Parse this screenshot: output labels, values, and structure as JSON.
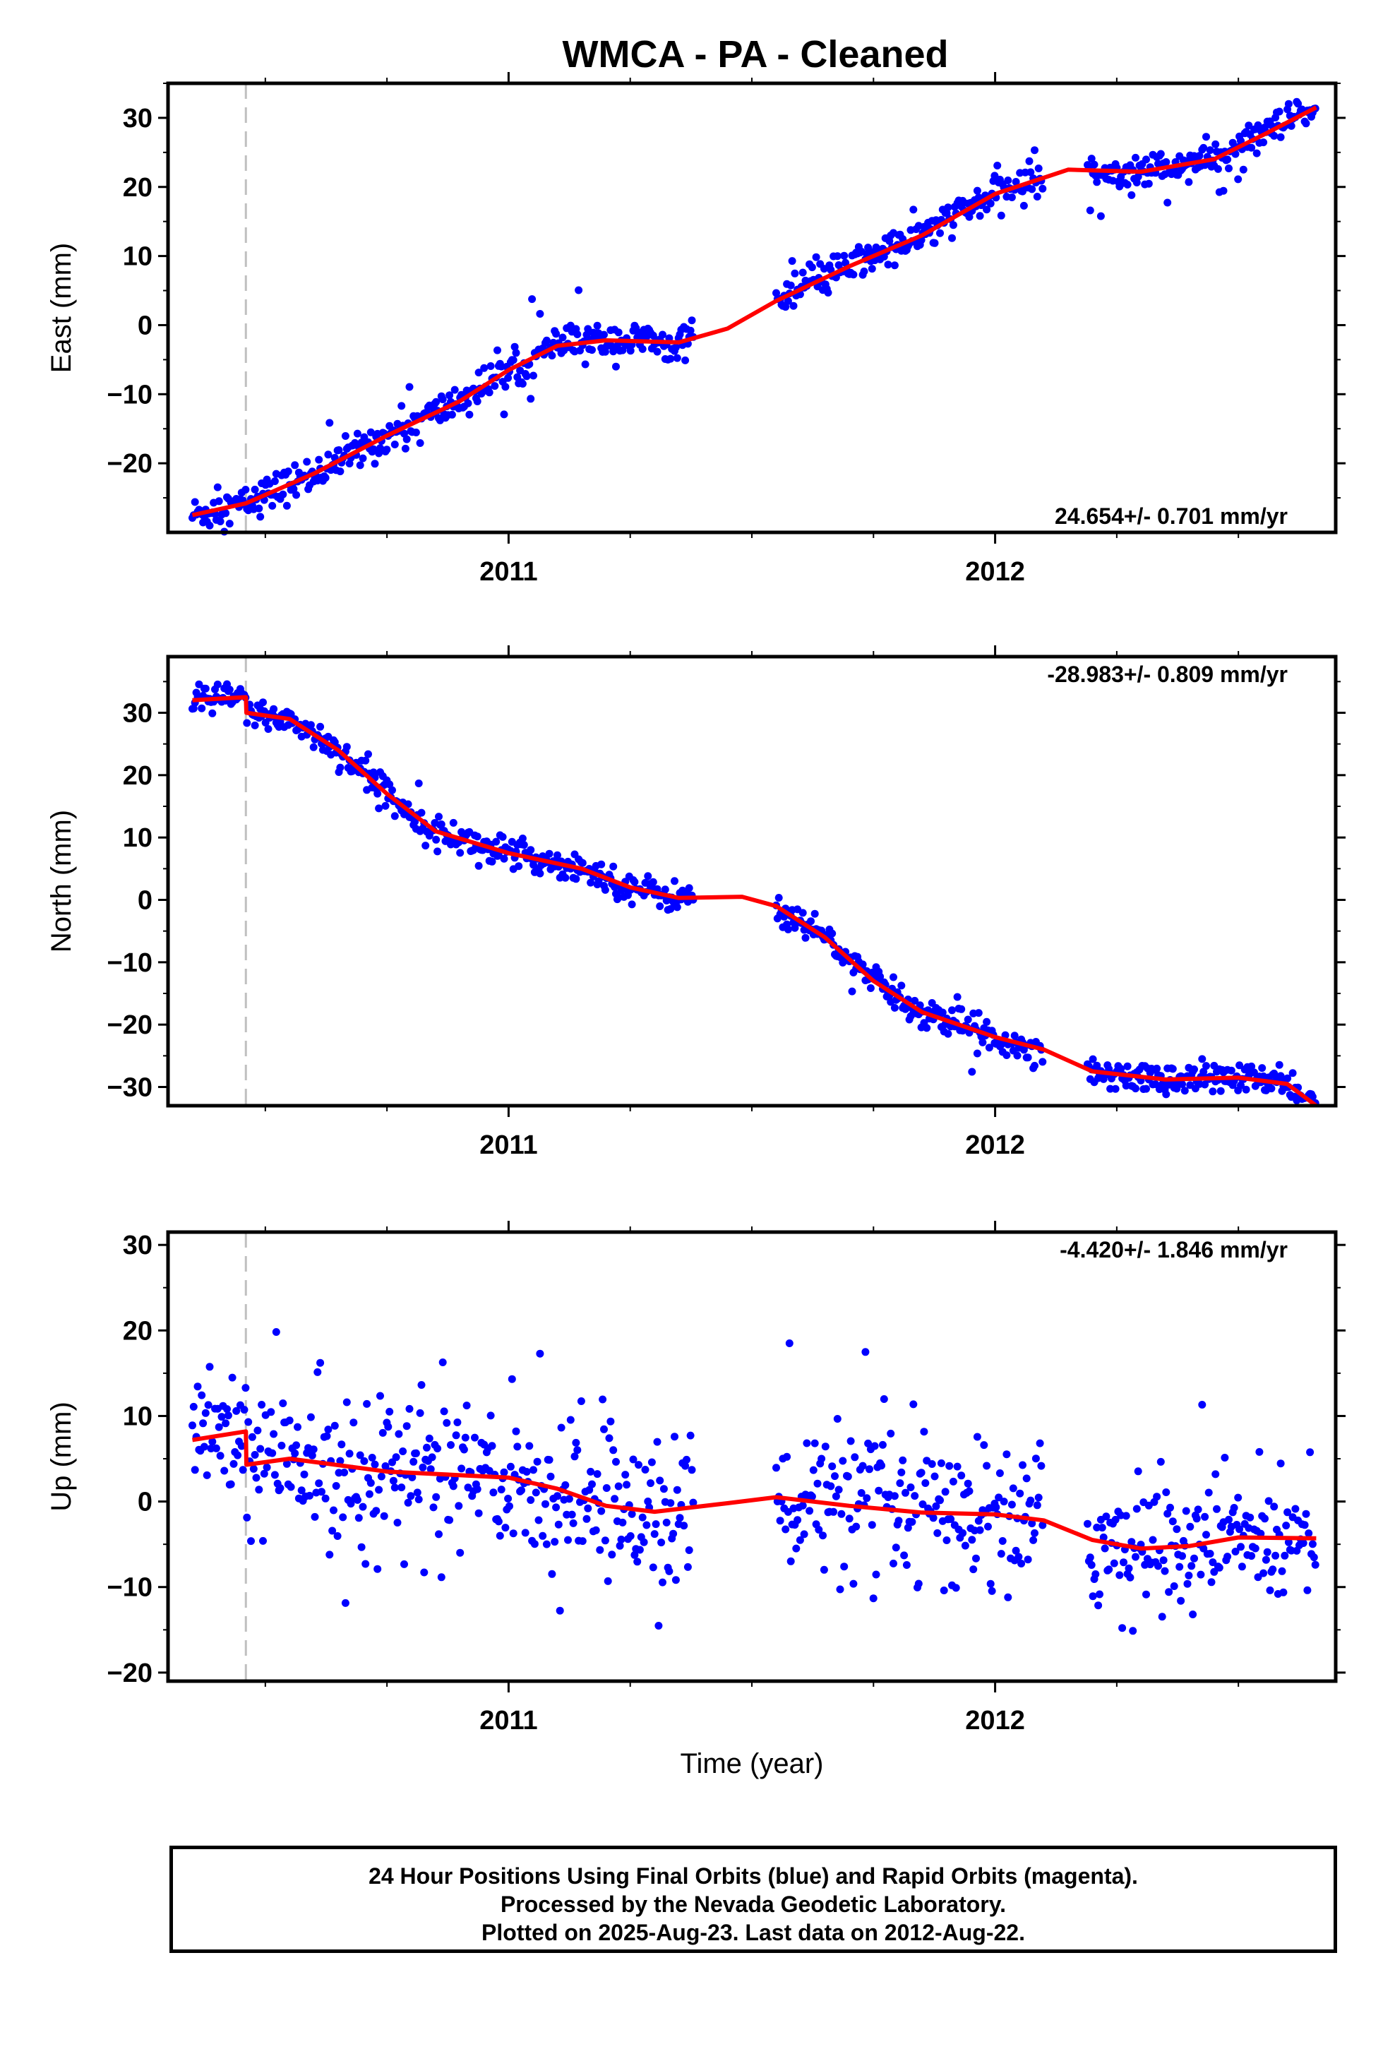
{
  "title": "WMCA  - PA - Cleaned",
  "footer": {
    "lines": [
      "24 Hour Positions Using Final Orbits (blue) and Rapid Orbits (magenta).",
      "Processed by the Nevada Geodetic Laboratory.",
      "Plotted on 2025-Aug-23. Last data on 2012-Aug-22."
    ]
  },
  "colors": {
    "data_points": "#0000ff",
    "model_fit": "#ff0000",
    "antenna_change": "#c0c0c0",
    "frame": "#000000"
  },
  "chart_data": [
    {
      "type": "scatter",
      "component": "East",
      "ylabel": "East (mm)",
      "xlabel": "",
      "xlim": [
        2010.3,
        2012.7
      ],
      "ylim": [
        -30,
        35
      ],
      "yticks": [
        -20,
        -10,
        0,
        10,
        20,
        30
      ],
      "xtick_labels": [
        "2011",
        "2012"
      ],
      "rate_label": "24.654+/- 0.701 mm/yr",
      "equipment_change_x": 2010.46,
      "series": [
        {
          "kind": "observations",
          "segments": [
            {
              "x0": 2010.35,
              "x1": 2011.38,
              "noise": 1.3
            },
            {
              "x0": 2011.55,
              "x1": 2012.1,
              "noise": 1.3
            },
            {
              "x0": 2012.19,
              "x1": 2012.66,
              "noise": 1.3
            }
          ]
        },
        {
          "kind": "model",
          "points": [
            [
              2010.35,
              -27.5
            ],
            [
              2010.46,
              -25.8
            ],
            [
              2010.6,
              -21.5
            ],
            [
              2010.75,
              -16
            ],
            [
              2010.9,
              -11
            ],
            [
              2011.0,
              -6.5
            ],
            [
              2011.1,
              -3.0
            ],
            [
              2011.2,
              -2.2
            ],
            [
              2011.35,
              -2.5
            ],
            [
              2011.45,
              -0.5
            ],
            [
              2011.55,
              3.5
            ],
            [
              2011.7,
              8.5
            ],
            [
              2011.85,
              13
            ],
            [
              2012.0,
              19
            ],
            [
              2012.15,
              22.5
            ],
            [
              2012.3,
              22.2
            ],
            [
              2012.45,
              24
            ],
            [
              2012.55,
              27.5
            ],
            [
              2012.66,
              31.5
            ]
          ]
        }
      ]
    },
    {
      "type": "scatter",
      "component": "North",
      "ylabel": "North (mm)",
      "xlabel": "",
      "xlim": [
        2010.3,
        2012.7
      ],
      "ylim": [
        -33,
        39
      ],
      "yticks": [
        -30,
        -20,
        -10,
        0,
        10,
        20,
        30
      ],
      "xtick_labels": [
        "2011",
        "2012"
      ],
      "rate_label": "-28.983+/- 0.809 mm/yr",
      "equipment_change_x": 2010.46,
      "series": [
        {
          "kind": "observations",
          "segments": [
            {
              "x0": 2010.35,
              "x1": 2011.38,
              "noise": 1.2
            },
            {
              "x0": 2011.55,
              "x1": 2012.1,
              "noise": 1.2
            },
            {
              "x0": 2012.19,
              "x1": 2012.66,
              "noise": 1.2
            }
          ]
        },
        {
          "kind": "model",
          "points": [
            [
              2010.35,
              32
            ],
            [
              2010.46,
              32.5
            ],
            [
              2010.461,
              30
            ],
            [
              2010.55,
              29
            ],
            [
              2010.65,
              24
            ],
            [
              2010.75,
              17
            ],
            [
              2010.85,
              11
            ],
            [
              2011.0,
              7.5
            ],
            [
              2011.15,
              5
            ],
            [
              2011.25,
              2
            ],
            [
              2011.35,
              0.3
            ],
            [
              2011.48,
              0.5
            ],
            [
              2011.55,
              -1
            ],
            [
              2011.65,
              -6
            ],
            [
              2011.75,
              -13
            ],
            [
              2011.85,
              -18
            ],
            [
              2012.0,
              -22
            ],
            [
              2012.1,
              -24
            ],
            [
              2012.2,
              -27.5
            ],
            [
              2012.35,
              -28.8
            ],
            [
              2012.5,
              -28.5
            ],
            [
              2012.6,
              -29.5
            ],
            [
              2012.66,
              -33
            ]
          ]
        }
      ]
    },
    {
      "type": "scatter",
      "component": "Up",
      "ylabel": "Up (mm)",
      "xlabel": "Time (year)",
      "xlim": [
        2010.3,
        2012.7
      ],
      "ylim": [
        -21,
        31.5
      ],
      "yticks": [
        -20,
        -10,
        0,
        10,
        20,
        30
      ],
      "xtick_labels": [
        "2011",
        "2012"
      ],
      "rate_label": "-4.420+/- 1.846 mm/yr",
      "equipment_change_x": 2010.46,
      "series": [
        {
          "kind": "observations",
          "segments": [
            {
              "x0": 2010.35,
              "x1": 2011.38,
              "noise": 4.5
            },
            {
              "x0": 2011.55,
              "x1": 2012.1,
              "noise": 4.5
            },
            {
              "x0": 2012.19,
              "x1": 2012.66,
              "noise": 4.0
            }
          ]
        },
        {
          "kind": "model",
          "points": [
            [
              2010.35,
              7.2
            ],
            [
              2010.46,
              8.2
            ],
            [
              2010.461,
              4.3
            ],
            [
              2010.55,
              5
            ],
            [
              2010.75,
              3.5
            ],
            [
              2011.0,
              2.8
            ],
            [
              2011.1,
              1.5
            ],
            [
              2011.2,
              -0.5
            ],
            [
              2011.3,
              -1.2
            ],
            [
              2011.45,
              -0.2
            ],
            [
              2011.55,
              0.5
            ],
            [
              2011.7,
              -0.5
            ],
            [
              2011.85,
              -1.3
            ],
            [
              2012.0,
              -1.5
            ],
            [
              2012.1,
              -2.2
            ],
            [
              2012.2,
              -4.5
            ],
            [
              2012.3,
              -5.5
            ],
            [
              2012.4,
              -5.2
            ],
            [
              2012.5,
              -4.2
            ],
            [
              2012.66,
              -4.3
            ]
          ]
        }
      ]
    }
  ]
}
